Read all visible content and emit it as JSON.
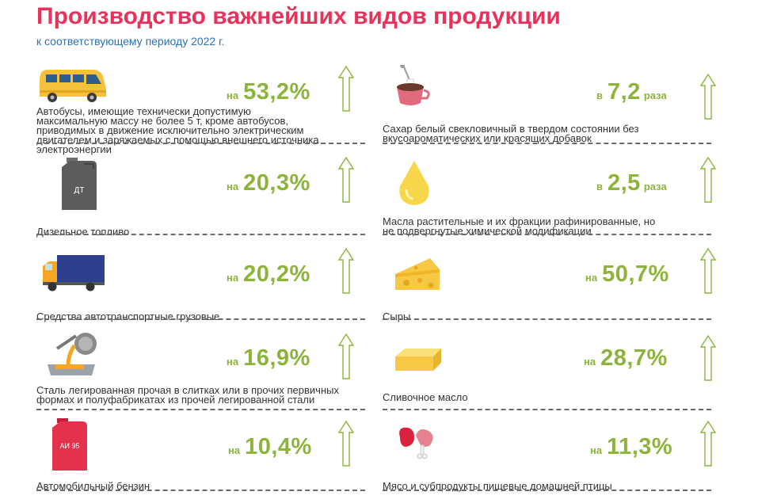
{
  "header": {
    "title": "Производство важнейших видов продукции",
    "subtitle": "к соответствующему периоду 2022 г."
  },
  "colors": {
    "title": "#e8325a",
    "subtitle": "#2a72b5",
    "value": "#8cb43a",
    "arrow": "#8cb43a"
  },
  "items": [
    {
      "icon": "bus-icon",
      "label": "Автобусы, имеющие технически допустимую максимальную массу не более 5 т, кроме автобусов, приводимых в движение исключительно электрическим двигателем и заряжаемых с помощью внешнего источника электроэнергии",
      "prefix": "на",
      "value": "53,2%",
      "suffix": ""
    },
    {
      "icon": "sugar-cup-icon",
      "label": "Сахар белый свекловичный в твердом состоянии без вкусоароматических или красящих добавок",
      "prefix": "в",
      "value": "7,2",
      "suffix": "раза"
    },
    {
      "icon": "diesel-canister-icon",
      "icon_text": "ДТ",
      "label": "Дизельное топливо",
      "prefix": "на",
      "value": "20,3%",
      "suffix": ""
    },
    {
      "icon": "oil-drop-icon",
      "label": "Масла растительные и их фракции рафинированные, но не подвергнутые химической модификации",
      "prefix": "в",
      "value": "2,5",
      "suffix": "раза"
    },
    {
      "icon": "truck-icon",
      "label": "Средства автотранспортные грузовые",
      "prefix": "на",
      "value": "20,2%",
      "suffix": ""
    },
    {
      "icon": "cheese-icon",
      "label": "Сыры",
      "prefix": "на",
      "value": "50,7%",
      "suffix": ""
    },
    {
      "icon": "steel-ladle-icon",
      "label": "Сталь легированная прочая в слитках или в прочих первичных формах и полуфабрикатах из прочей легированной стали",
      "prefix": "на",
      "value": "16,9%",
      "suffix": ""
    },
    {
      "icon": "butter-icon",
      "label": "Сливочное масло",
      "prefix": "на",
      "value": "28,7%",
      "suffix": ""
    },
    {
      "icon": "gasoline-canister-icon",
      "icon_text": "АИ 95",
      "label": "Автомобильный бензин",
      "prefix": "на",
      "value": "10,4%",
      "suffix": ""
    },
    {
      "icon": "poultry-meat-icon",
      "label": "Мясо и субпродукты пищевые домашней птицы",
      "prefix": "на",
      "value": "11,3%",
      "suffix": ""
    }
  ]
}
